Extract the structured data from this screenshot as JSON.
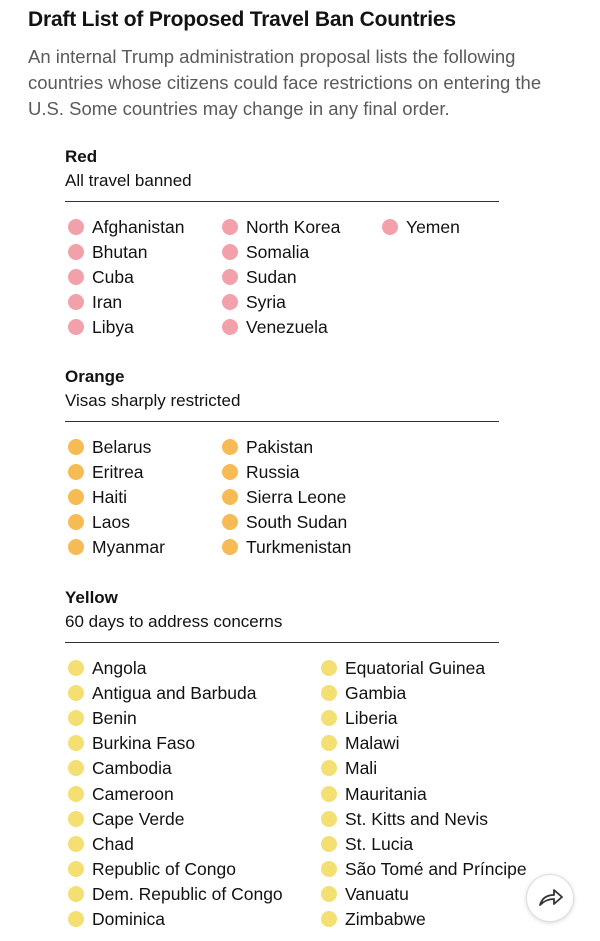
{
  "header": {
    "title": "Draft List of Proposed Travel Ban Countries",
    "description": "An internal Trump administration proposal lists the following countries whose citizens could face restrictions on entering the U.S. Some countries may change in any final order."
  },
  "groups": [
    {
      "name": "Red",
      "subtitle": "All travel banned",
      "color": "#f2a1aa",
      "columns": [
        [
          "Afghanistan",
          "Bhutan",
          "Cuba",
          "Iran",
          "Libya"
        ],
        [
          "North Korea",
          "Somalia",
          "Sudan",
          "Syria",
          "Venezuela"
        ],
        [
          "Yemen"
        ]
      ]
    },
    {
      "name": "Orange",
      "subtitle": "Visas sharply restricted",
      "color": "#f6bb55",
      "columns": [
        [
          "Belarus",
          "Eritrea",
          "Haiti",
          "Laos",
          "Myanmar"
        ],
        [
          "Pakistan",
          "Russia",
          "Sierra Leone",
          "South Sudan",
          "Turkmenistan"
        ]
      ]
    },
    {
      "name": "Yellow",
      "subtitle": "60 days to address concerns",
      "color": "#f3df72",
      "columns": [
        [
          "Angola",
          "Antigua and Barbuda",
          "Benin",
          "Burkina Faso",
          "Cambodia",
          "Cameroon",
          "Cape Verde",
          "Chad",
          "Republic of Congo",
          "Dem. Republic of Congo",
          "Dominica"
        ],
        [
          "Equatorial Guinea",
          "Gambia",
          "Liberia",
          "Malawi",
          "Mali",
          "Mauritania",
          "St. Kitts and Nevis",
          "St. Lucia",
          "São Tomé and Príncipe",
          "Vanuatu",
          "Zimbabwe"
        ]
      ]
    }
  ]
}
